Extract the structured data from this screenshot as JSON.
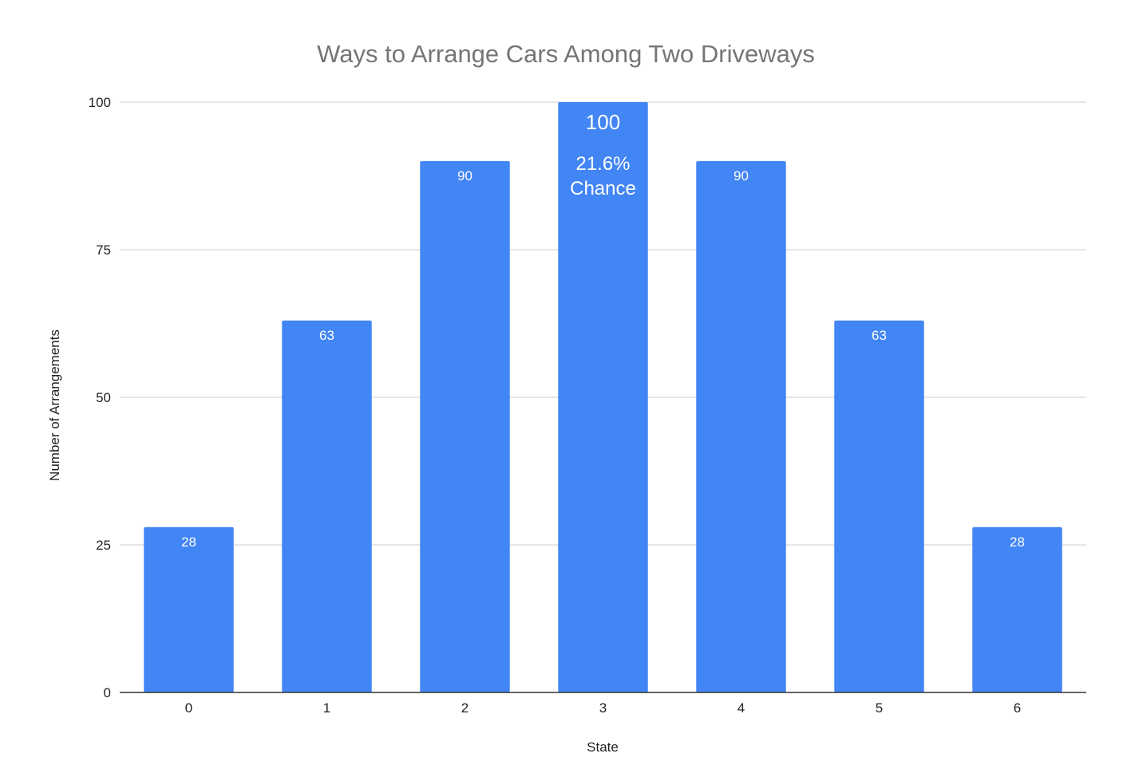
{
  "chart_data": {
    "type": "bar",
    "title": "Ways to Arrange Cars Among Two Driveways",
    "xlabel": "State",
    "ylabel": "Number of Arrangements",
    "categories": [
      "0",
      "1",
      "2",
      "3",
      "4",
      "5",
      "6"
    ],
    "values": [
      28,
      63,
      90,
      100,
      90,
      63,
      28
    ],
    "ylim": [
      0,
      100
    ],
    "yticks": [
      "0",
      "25",
      "50",
      "75",
      "100"
    ],
    "data_labels": [
      "28",
      "63",
      "90",
      "100",
      "90",
      "63",
      "28"
    ],
    "annotations": [
      {
        "category": "3",
        "lines": [
          "21.6%",
          "Chance"
        ]
      }
    ],
    "grid": true,
    "legend": "none",
    "colors": {
      "bar": "#4285f4",
      "grid": "#cccccc",
      "axis": "#333333"
    }
  }
}
